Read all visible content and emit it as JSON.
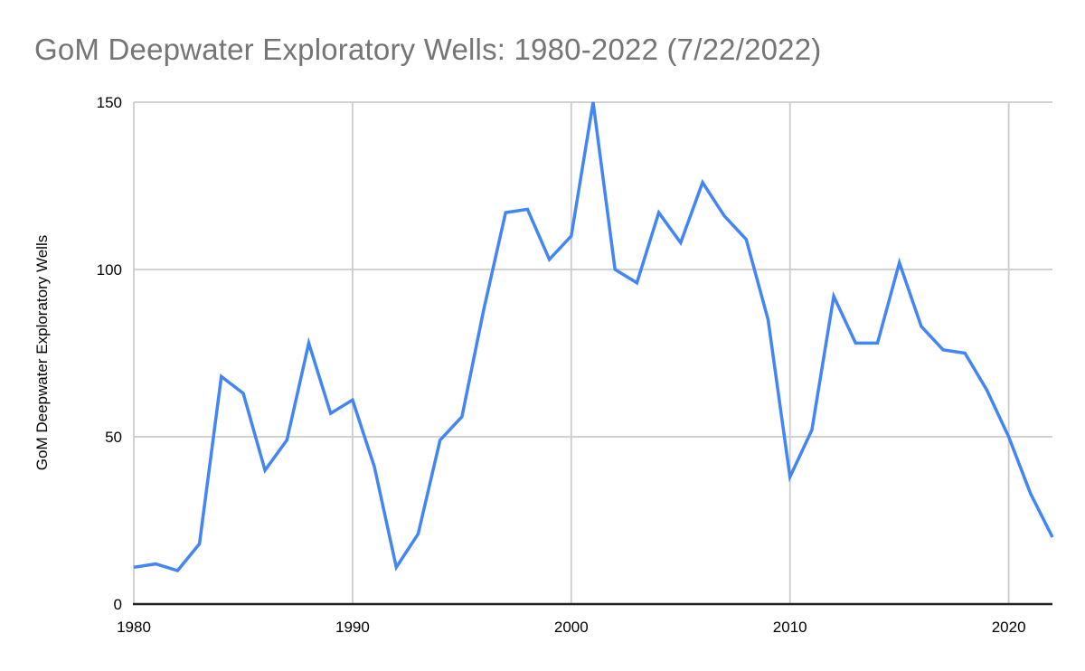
{
  "title": "GoM Deepwater Exploratory Wells: 1980-2022 (7/22/2022)",
  "colors": {
    "line": "#4285f4",
    "grid": "#cccccc",
    "axis": "#212121",
    "title_text": "#757575",
    "tick_text": "#000000",
    "ylabel_text": "#000000",
    "background": "#ffffff"
  },
  "chart_data": {
    "type": "line",
    "title": "GoM Deepwater Exploratory Wells: 1980-2022 (7/22/2022)",
    "xlabel": "",
    "ylabel": "GoM Deepwater Exploratory Wells",
    "series": [
      {
        "name": "GoM Deepwater Exploratory Wells",
        "x": [
          1980,
          1981,
          1982,
          1983,
          1984,
          1985,
          1986,
          1987,
          1988,
          1989,
          1990,
          1991,
          1992,
          1993,
          1994,
          1995,
          1996,
          1997,
          1998,
          1999,
          2000,
          2001,
          2002,
          2003,
          2004,
          2005,
          2006,
          2007,
          2008,
          2009,
          2010,
          2011,
          2012,
          2013,
          2014,
          2015,
          2016,
          2017,
          2018,
          2019,
          2020,
          2021,
          2022
        ],
        "values": [
          11,
          12,
          10,
          18,
          68,
          63,
          40,
          49,
          78,
          57,
          61,
          41,
          11,
          21,
          49,
          56,
          88,
          117,
          118,
          103,
          110,
          150,
          100,
          96,
          117,
          108,
          126,
          116,
          109,
          85,
          38,
          52,
          92,
          78,
          78,
          102,
          83,
          76,
          75,
          64,
          50,
          33,
          20
        ]
      }
    ],
    "xlim": [
      1980,
      2022
    ],
    "ylim": [
      0,
      150
    ],
    "x_ticks": [
      1980,
      1990,
      2000,
      2010,
      2020
    ],
    "y_ticks": [
      0,
      50,
      100,
      150
    ],
    "grid": true,
    "legend_position": "none"
  }
}
